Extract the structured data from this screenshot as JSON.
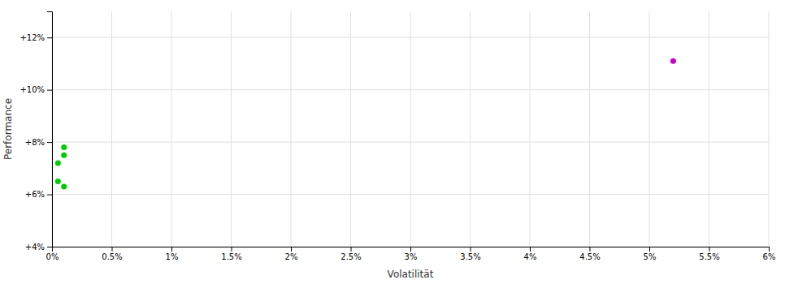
{
  "chart_data": {
    "type": "scatter",
    "xlabel": "Volatilität",
    "ylabel": "Performance",
    "grid": true,
    "xlim": [
      0.0,
      0.06
    ],
    "ylim": [
      0.04,
      0.13
    ],
    "xticks": [
      {
        "value": 0.0,
        "label": "0%"
      },
      {
        "value": 0.005,
        "label": "0.5%"
      },
      {
        "value": 0.01,
        "label": "1%"
      },
      {
        "value": 0.015,
        "label": "1.5%"
      },
      {
        "value": 0.02,
        "label": "2%"
      },
      {
        "value": 0.025,
        "label": "2.5%"
      },
      {
        "value": 0.03,
        "label": "3%"
      },
      {
        "value": 0.035,
        "label": "3.5%"
      },
      {
        "value": 0.04,
        "label": "4%"
      },
      {
        "value": 0.045,
        "label": "4.5%"
      },
      {
        "value": 0.05,
        "label": "5%"
      },
      {
        "value": 0.055,
        "label": "5.5%"
      },
      {
        "value": 0.06,
        "label": "6%"
      }
    ],
    "yticks": [
      {
        "value": 0.04,
        "label": "+4%"
      },
      {
        "value": 0.06,
        "label": "+6%"
      },
      {
        "value": 0.08,
        "label": "+8%"
      },
      {
        "value": 0.1,
        "label": "+10%"
      },
      {
        "value": 0.12,
        "label": "+12%"
      }
    ],
    "series": [
      {
        "color": "#00cc00",
        "x": [
          0.001,
          0.001,
          0.0005,
          0.0005,
          0.001
        ],
        "values": [
          0.078,
          0.075,
          0.072,
          0.065,
          0.063
        ]
      },
      {
        "color": "#cc00cc",
        "x": [
          0.052
        ],
        "values": [
          0.111
        ]
      }
    ]
  }
}
